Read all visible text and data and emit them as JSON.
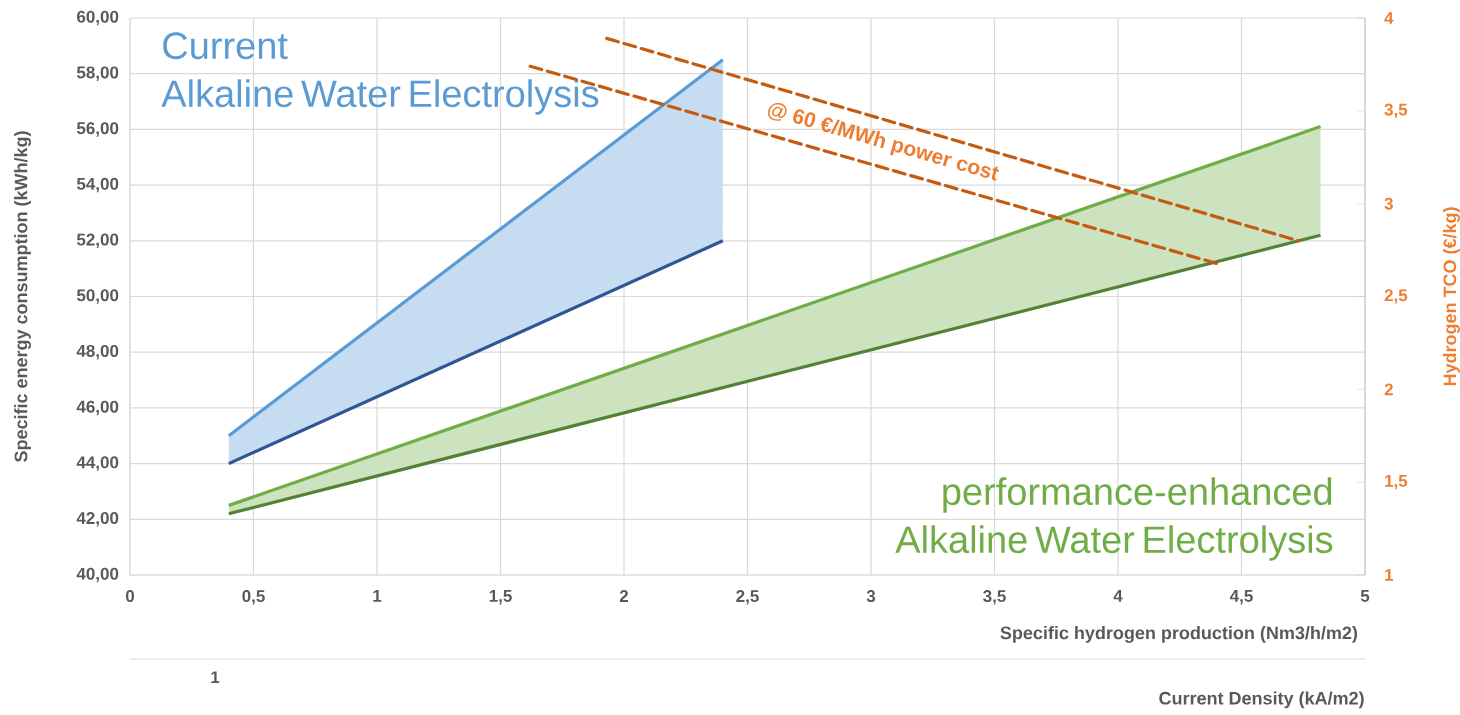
{
  "chart_data": {
    "type": "line",
    "xlabel": "Specific hydrogen production (Nm3/h/m2)",
    "ylabel": "Specific energy consumption (kWh/kg)",
    "y2label": "Hydrogen TCO (€/kg)",
    "annotations": [
      "1",
      "Current Density (kA/m2)"
    ],
    "xlim": [
      0,
      5
    ],
    "ylim": [
      40,
      60
    ],
    "y2lim": [
      1,
      4
    ],
    "xticks": [
      0,
      {
        "value": 0.5,
        "label": "0,5"
      },
      1,
      {
        "value": 1.5,
        "label": "1,5"
      },
      2,
      {
        "value": 2.5,
        "label": "2,5"
      },
      3,
      {
        "value": 3.5,
        "label": "3,5"
      },
      4,
      {
        "value": 4.5,
        "label": "4,5"
      },
      5
    ],
    "yticks": [
      {
        "value": 40,
        "label": "40,00"
      },
      {
        "value": 42,
        "label": "42,00"
      },
      {
        "value": 44,
        "label": "44,00"
      },
      {
        "value": 46,
        "label": "46,00"
      },
      {
        "value": 48,
        "label": "48,00"
      },
      {
        "value": 50,
        "label": "50,00"
      },
      {
        "value": 52,
        "label": "52,00"
      },
      {
        "value": 54,
        "label": "54,00"
      },
      {
        "value": 56,
        "label": "56,00"
      },
      {
        "value": 58,
        "label": "58,00"
      },
      {
        "value": 60,
        "label": "60,00"
      }
    ],
    "y2ticks": [
      1,
      {
        "value": 1.5,
        "label": "1,5"
      },
      2,
      {
        "value": 2.5,
        "label": "2,5"
      },
      3,
      {
        "value": 3.5,
        "label": "3,5"
      },
      4
    ],
    "grid": true,
    "series": [
      {
        "name": "Current Alkaline Water Electrolysis",
        "color": "#5b9bd5",
        "x": [
          0.4,
          2.4
        ],
        "values": [
          45,
          58.5
        ],
        "lower": [
          44,
          52
        ],
        "upper": [
          45,
          58.5
        ]
      },
      {
        "color": "#2f5597",
        "x": [
          0.4,
          2.4
        ],
        "values": [
          44,
          52
        ]
      },
      {
        "name": "performance-enhanced Alkaline Water Electrolysis",
        "color": "#70ad47",
        "x": [
          0.4,
          4.82
        ],
        "values": [
          42.5,
          56.1
        ],
        "lower": [
          42.2,
          52.2
        ],
        "upper": [
          42.5,
          56.1
        ]
      },
      {
        "color": "#548235",
        "x": [
          0.4,
          4.82
        ],
        "values": [
          42.2,
          52.2
        ]
      },
      {
        "color": "#c55a11",
        "x": [
          1.93,
          4.73
        ],
        "values": [
          3.89,
          2.8
        ],
        "axis": "y2",
        "line_style": "dashed"
      },
      {
        "name": "@ 60 €/MWh power cost",
        "color": "#c55a11",
        "x": [
          1.62,
          4.42
        ],
        "values": [
          3.74,
          2.67
        ],
        "axis": "y2",
        "line_style": "dashed"
      }
    ]
  }
}
